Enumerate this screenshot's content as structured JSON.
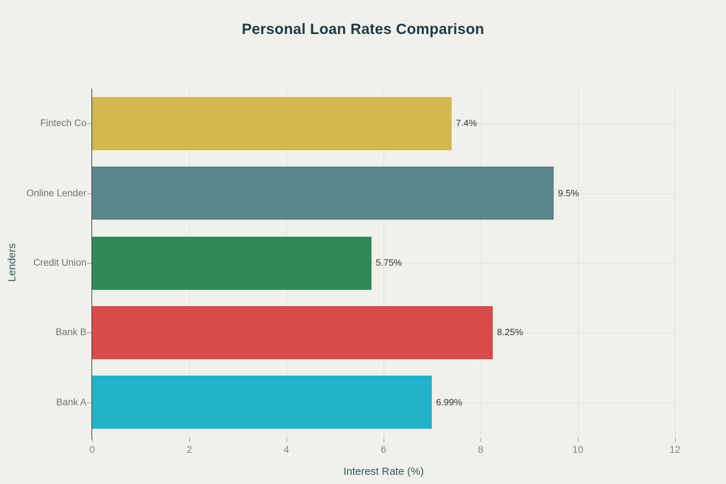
{
  "chart_data": {
    "type": "bar",
    "orientation": "horizontal",
    "title": "Personal Loan Rates Comparison",
    "xlabel": "Interest Rate (%)",
    "ylabel": "Lenders",
    "categories": [
      "Fintech Co",
      "Online Lender",
      "Credit Union",
      "Bank B",
      "Bank A"
    ],
    "values": [
      7.4,
      9.5,
      5.75,
      8.25,
      6.99
    ],
    "value_labels": [
      "7.4%",
      "9.5%",
      "5.75%",
      "8.25%",
      "6.99%"
    ],
    "bar_colors": [
      "#d2b84e",
      "#5b868d",
      "#2f8a55",
      "#d94a4b",
      "#22b2c9"
    ],
    "xlim": [
      0,
      12
    ],
    "x_ticks": [
      "0",
      "2",
      "4",
      "6",
      "8",
      "10",
      "12"
    ],
    "grid": "on",
    "legend": "none",
    "colors": {
      "background": "#f1f0ea",
      "title": "#1b3a47",
      "axis_title": "#2c5a63",
      "tick_label": "#82878c",
      "category_label": "#73736d",
      "value_label": "#333333",
      "gridline": "#e3e1d8",
      "axis_line": "#454545",
      "tick_mark": "#a3a39c"
    }
  }
}
